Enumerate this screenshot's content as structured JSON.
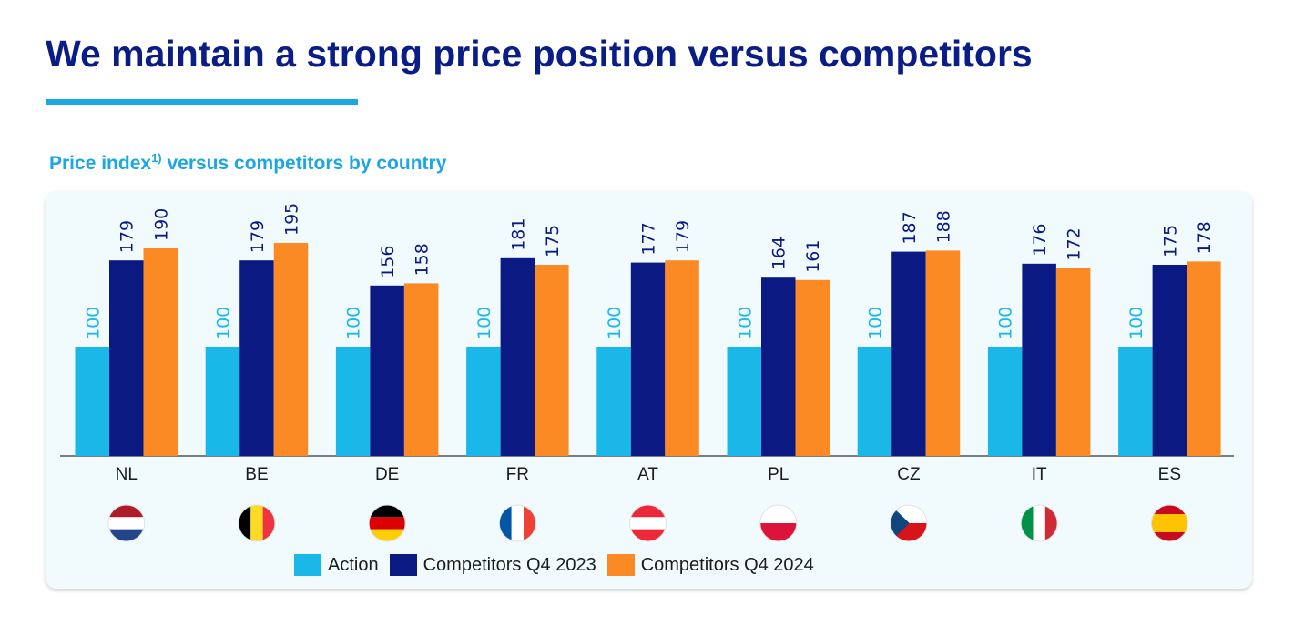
{
  "title": "We maintain a strong price position versus competitors",
  "subtitle": {
    "text": "Price index",
    "superscript": "1)",
    "suffix": " versus competitors by country"
  },
  "colors": {
    "action": "#1ab8e8",
    "q4_2023": "#0a1a82",
    "q4_2024": "#fb8a24",
    "title": "#0a1d86",
    "accent": "#1aa7e2"
  },
  "chart_data": {
    "type": "bar",
    "title": "Price index versus competitors by country",
    "categories": [
      "NL",
      "BE",
      "DE",
      "FR",
      "AT",
      "PL",
      "CZ",
      "IT",
      "ES"
    ],
    "series": [
      {
        "name": "Action",
        "values": [
          100,
          100,
          100,
          100,
          100,
          100,
          100,
          100,
          100
        ]
      },
      {
        "name": "Competitors Q4 2023",
        "values": [
          179,
          179,
          156,
          181,
          177,
          164,
          187,
          176,
          175
        ]
      },
      {
        "name": "Competitors Q4 2024",
        "values": [
          190,
          195,
          158,
          175,
          179,
          161,
          188,
          172,
          178
        ]
      }
    ],
    "ylim": [
      0,
      210
    ],
    "xlabel": "",
    "ylabel": "",
    "legend_position": "bottom",
    "flags": [
      "nl-flag-icon",
      "be-flag-icon",
      "de-flag-icon",
      "fr-flag-icon",
      "at-flag-icon",
      "pl-flag-icon",
      "cz-flag-icon",
      "it-flag-icon",
      "es-flag-icon"
    ]
  },
  "legend": [
    {
      "label": "Action"
    },
    {
      "label": "Competitors Q4 2023"
    },
    {
      "label": "Competitors Q4 2024"
    }
  ]
}
